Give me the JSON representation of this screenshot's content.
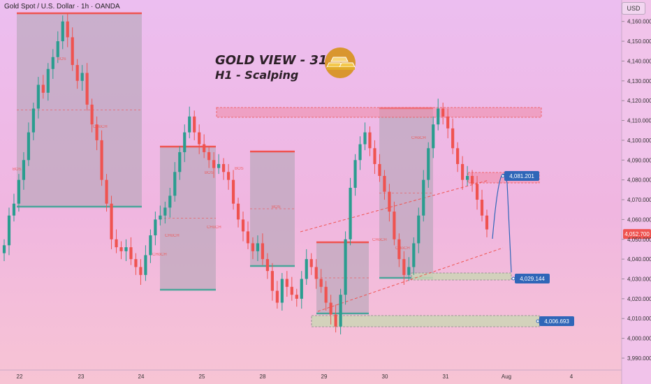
{
  "header": {
    "symbol_title": "Gold Spot / U.S. Dollar · 1h · OANDA",
    "unit_label": "USD"
  },
  "annotation": {
    "title_line1": "GOLD VIEW - 31/07",
    "title_line2": "H1 - Scalping",
    "logo_icon": "gold-bars-icon"
  },
  "colors": {
    "bull": "#2a9d8f",
    "bear": "#ef5350",
    "box": "#b3a5b5",
    "zone": "#f08aa5",
    "support": "#cdd5b6",
    "label_blue": "#2f66b8",
    "resistance_line": "#ef5350",
    "support_line": "#4aa59a"
  },
  "chart_data": {
    "type": "candlestick",
    "ylabel": "USD",
    "ylim": [
      3984,
      4168
    ],
    "y_ticks": [
      "4,160.000",
      "4,150.000",
      "4,140.000",
      "4,130.000",
      "4,120.000",
      "4,110.000",
      "4,100.000",
      "4,090.000",
      "4,080.000",
      "4,070.000",
      "4,060.000",
      "4,050.000",
      "4,040.000",
      "4,030.000",
      "4,020.000",
      "4,010.000",
      "4,000.000",
      "3,990.000"
    ],
    "x_ticks": [
      "22",
      "23",
      "24",
      "25",
      "28",
      "29",
      "30",
      "31",
      "Aug",
      "4"
    ],
    "current_price": "4,052.700",
    "price_labels": [
      {
        "value": 4081.201,
        "text": "4,081.201"
      },
      {
        "value": 4029.144,
        "text": "4,029.144"
      },
      {
        "value": 4006.693,
        "text": "4,006.693"
      }
    ],
    "structure_labels": [
      "BOS",
      "BOS",
      "CHoCH",
      "BOS",
      "CHoCH",
      "BOS",
      "CHoCH",
      "CHoCH",
      "BOS",
      "CHoCH",
      "CHoCH",
      "CHoCH"
    ],
    "series": [
      {
        "name": "",
        "close": [
          4047,
          4062,
          4068,
          4080,
          4090,
          4104,
          4116,
          4128,
          4124,
          4136,
          4142,
          4150,
          4160,
          4152,
          4138,
          4130,
          4134,
          4118,
          4108,
          4100,
          4080,
          4068,
          4050,
          4046,
          4044,
          4046,
          4040,
          4036,
          4032,
          4042,
          4052,
          4060,
          4062,
          4066,
          4072,
          4084,
          4094,
          4104,
          4112,
          4104,
          4098,
          4094,
          4090,
          4086,
          4088,
          4084,
          4080,
          4068,
          4060,
          4054,
          4048,
          4044,
          4048,
          4040,
          4034,
          4024,
          4018,
          4030,
          4026,
          4022,
          4020,
          4030,
          4040,
          4036,
          4030,
          4026,
          4018,
          4012,
          4006,
          4022,
          4050,
          4076,
          4090,
          4098,
          4104,
          4096,
          4088,
          4082,
          4074,
          4064,
          4050,
          4040,
          4032,
          4036,
          4048,
          4062,
          4080,
          4096,
          4108,
          4116,
          4112,
          4106,
          4096,
          4088,
          4080,
          4082,
          4078,
          4070,
          4062,
          4055
        ]
      }
    ]
  }
}
